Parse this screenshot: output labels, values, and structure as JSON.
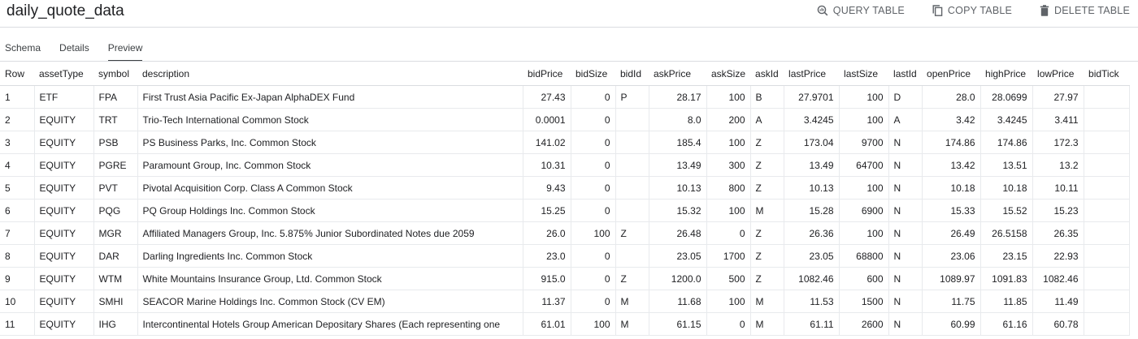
{
  "header": {
    "title": "daily_quote_data",
    "actions": [
      {
        "label": "QUERY TABLE",
        "icon": "query-icon"
      },
      {
        "label": "COPY TABLE",
        "icon": "copy-icon"
      },
      {
        "label": "DELETE TABLE",
        "icon": "trash-icon"
      }
    ]
  },
  "tabs": [
    {
      "label": "Schema",
      "active": false
    },
    {
      "label": "Details",
      "active": false
    },
    {
      "label": "Preview",
      "active": true
    }
  ],
  "table": {
    "columns": [
      "Row",
      "assetType",
      "symbol",
      "description",
      "bidPrice",
      "bidSize",
      "bidId",
      "askPrice",
      "askSize",
      "askId",
      "lastPrice",
      "lastSize",
      "lastId",
      "openPrice",
      "highPrice",
      "lowPrice",
      "bidTick"
    ],
    "rows": [
      [
        "1",
        "ETF",
        "FPA",
        "First Trust Asia Pacific Ex-Japan AlphaDEX Fund",
        "27.43",
        "0",
        "P",
        "28.17",
        "100",
        "B",
        "27.9701",
        "100",
        "D",
        "28.0",
        "28.0699",
        "27.97",
        ""
      ],
      [
        "2",
        "EQUITY",
        "TRT",
        "Trio-Tech International Common Stock",
        "0.0001",
        "0",
        "",
        "8.0",
        "200",
        "A",
        "3.4245",
        "100",
        "A",
        "3.42",
        "3.4245",
        "3.411",
        ""
      ],
      [
        "3",
        "EQUITY",
        "PSB",
        "PS Business Parks, Inc. Common Stock",
        "141.02",
        "0",
        "",
        "185.4",
        "100",
        "Z",
        "173.04",
        "9700",
        "N",
        "174.86",
        "174.86",
        "172.3",
        ""
      ],
      [
        "4",
        "EQUITY",
        "PGRE",
        "Paramount Group, Inc. Common Stock",
        "10.31",
        "0",
        "",
        "13.49",
        "300",
        "Z",
        "13.49",
        "64700",
        "N",
        "13.42",
        "13.51",
        "13.2",
        ""
      ],
      [
        "5",
        "EQUITY",
        "PVT",
        "Pivotal Acquisition Corp. Class A Common Stock",
        "9.43",
        "0",
        "",
        "10.13",
        "800",
        "Z",
        "10.13",
        "100",
        "N",
        "10.18",
        "10.18",
        "10.11",
        ""
      ],
      [
        "6",
        "EQUITY",
        "PQG",
        "PQ Group Holdings Inc. Common Stock",
        "15.25",
        "0",
        "",
        "15.32",
        "100",
        "M",
        "15.28",
        "6900",
        "N",
        "15.33",
        "15.52",
        "15.23",
        ""
      ],
      [
        "7",
        "EQUITY",
        "MGR",
        "Affiliated Managers Group, Inc. 5.875% Junior Subordinated Notes due 2059",
        "26.0",
        "100",
        "Z",
        "26.48",
        "0",
        "Z",
        "26.36",
        "100",
        "N",
        "26.49",
        "26.5158",
        "26.35",
        ""
      ],
      [
        "8",
        "EQUITY",
        "DAR",
        "Darling Ingredients Inc. Common Stock",
        "23.0",
        "0",
        "",
        "23.05",
        "1700",
        "Z",
        "23.05",
        "68800",
        "N",
        "23.06",
        "23.15",
        "22.93",
        ""
      ],
      [
        "9",
        "EQUITY",
        "WTM",
        "White Mountains Insurance Group, Ltd. Common Stock",
        "915.0",
        "0",
        "Z",
        "1200.0",
        "500",
        "Z",
        "1082.46",
        "600",
        "N",
        "1089.97",
        "1091.83",
        "1082.46",
        ""
      ],
      [
        "10",
        "EQUITY",
        "SMHI",
        "SEACOR Marine Holdings Inc. Common Stock (CV EM)",
        "11.37",
        "0",
        "M",
        "11.68",
        "100",
        "M",
        "11.53",
        "1500",
        "N",
        "11.75",
        "11.85",
        "11.49",
        ""
      ],
      [
        "11",
        "EQUITY",
        "IHG",
        "Intercontinental Hotels Group American Depositary Shares (Each representing one",
        "61.01",
        "100",
        "M",
        "61.15",
        "0",
        "M",
        "61.11",
        "2600",
        "N",
        "60.99",
        "61.16",
        "60.78",
        ""
      ]
    ]
  },
  "chart_data": {
    "type": "table",
    "title": "daily_quote_data",
    "columns": [
      "Row",
      "assetType",
      "symbol",
      "description",
      "bidPrice",
      "bidSize",
      "bidId",
      "askPrice",
      "askSize",
      "askId",
      "lastPrice",
      "lastSize",
      "lastId",
      "openPrice",
      "highPrice",
      "lowPrice",
      "bidTick"
    ],
    "row_count": 11
  }
}
